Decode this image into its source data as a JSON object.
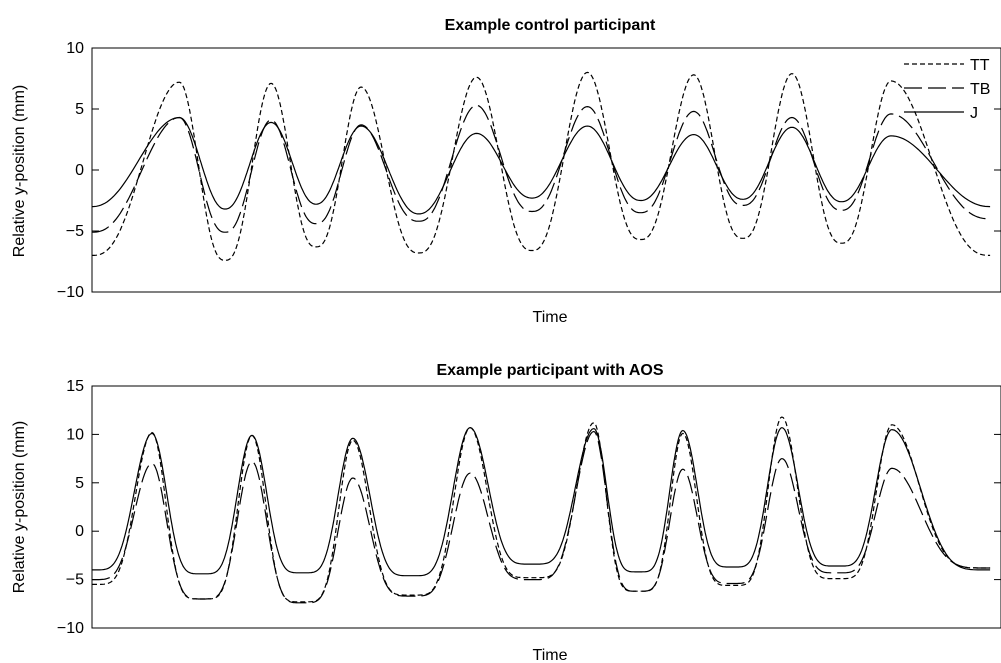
{
  "colors": {
    "line": "#000000",
    "background": "#ffffff"
  },
  "chart_data": [
    {
      "type": "line",
      "title": "Example control participant",
      "xlabel": "Time",
      "ylabel": "Relative y-position (mm)",
      "ylim": [
        -10,
        10
      ],
      "yticks": [
        -10,
        -5,
        0,
        5,
        10
      ],
      "yticklabels": [
        "−10",
        "−5",
        "0",
        "5",
        "10"
      ],
      "xlim": [
        0,
        1
      ],
      "show_xticks": false,
      "grid": false,
      "legend_position": "top-right",
      "peaks": [
        0.096,
        0.197,
        0.296,
        0.423,
        0.545,
        0.662,
        0.77,
        0.879
      ],
      "x_start": 0.0,
      "x_end": 0.988,
      "series": [
        {
          "name": "TT",
          "dash": "dashed",
          "peaks": [
            7.2,
            7.1,
            6.8,
            7.6,
            8.0,
            7.8,
            7.9,
            7.3
          ],
          "troughs": [
            -7.0,
            -7.4,
            -6.3,
            -6.8,
            -6.6,
            -5.7,
            -5.6,
            -6.0,
            -7.0
          ],
          "width": 0.75
        },
        {
          "name": "TB",
          "dash": "long-dash",
          "peaks": [
            4.3,
            4.1,
            3.7,
            5.3,
            5.2,
            4.8,
            4.3,
            4.6
          ],
          "troughs": [
            -5.1,
            -5.1,
            -4.4,
            -4.2,
            -3.4,
            -3.5,
            -2.9,
            -3.3,
            -4.0
          ],
          "width": 0.8
        },
        {
          "name": "J",
          "dash": "solid",
          "peaks": [
            4.3,
            3.9,
            3.6,
            3.0,
            3.6,
            2.9,
            3.5,
            2.8
          ],
          "troughs": [
            -3.0,
            -3.2,
            -2.8,
            -3.6,
            -2.3,
            -2.5,
            -2.4,
            -2.6,
            -3.0
          ],
          "width": 0.9
        }
      ]
    },
    {
      "type": "line",
      "title": "Example participant with AOS",
      "xlabel": "Time",
      "ylabel": "Relative y-position (mm)",
      "ylim": [
        -10,
        15
      ],
      "yticks": [
        -10,
        -5,
        0,
        5,
        10,
        15
      ],
      "yticklabels": [
        "−10",
        "−5",
        "0",
        "5",
        "10",
        "15"
      ],
      "xlim": [
        0,
        1
      ],
      "show_xticks": false,
      "grid": false,
      "peaks": [
        0.066,
        0.176,
        0.287,
        0.416,
        0.552,
        0.65,
        0.759,
        0.88
      ],
      "x_start": 0.0,
      "x_end": 0.988,
      "series": [
        {
          "name": "TT",
          "dash": "dashed",
          "peaks": [
            10.2,
            9.9,
            9.4,
            10.7,
            11.2,
            10.1,
            11.8,
            11.0
          ],
          "troughs": [
            -5.5,
            -7.0,
            -7.3,
            -6.6,
            -4.8,
            -6.2,
            -5.6,
            -4.9,
            -3.8
          ],
          "width": 0.36
        },
        {
          "name": "TB",
          "dash": "long-dash",
          "peaks": [
            7.0,
            7.2,
            5.5,
            6.0,
            10.3,
            6.4,
            7.5,
            6.5
          ],
          "troughs": [
            -5.0,
            -7.0,
            -7.4,
            -6.7,
            -5.0,
            -6.2,
            -5.4,
            -4.3,
            -3.8
          ],
          "width": 0.4
        },
        {
          "name": "J",
          "dash": "solid",
          "peaks": [
            10.1,
            9.9,
            9.6,
            10.7,
            10.6,
            10.4,
            10.7,
            10.5
          ],
          "troughs": [
            -4.0,
            -4.4,
            -4.3,
            -4.6,
            -3.4,
            -4.2,
            -3.7,
            -3.6,
            -4.0
          ],
          "width": 0.4
        }
      ]
    }
  ]
}
